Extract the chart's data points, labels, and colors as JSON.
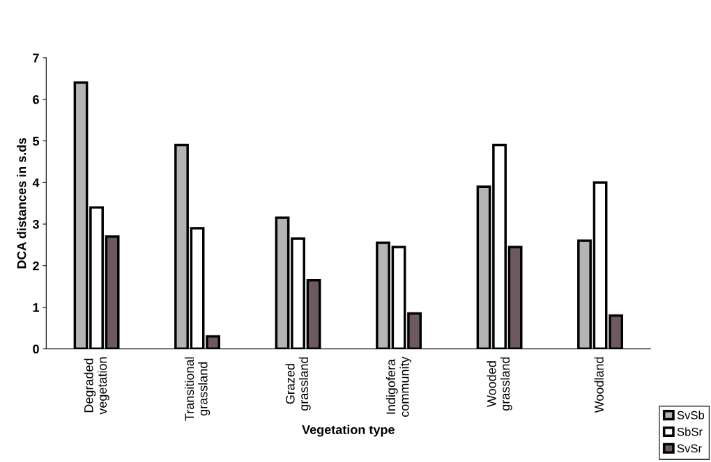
{
  "chart_data": {
    "type": "bar",
    "xlabel": "Vegetation type",
    "ylabel": "DCA distances in s.ds",
    "categories": [
      "Degraded\nvegetation",
      "Transitional\ngrassland",
      "Grazed\ngrassland",
      "Indigofera\ncommunity",
      "Wooded\ngrassland",
      "Woodland"
    ],
    "series": [
      {
        "name": "SvSb",
        "color": "#b4b4b4",
        "values": [
          6.4,
          4.9,
          3.15,
          2.55,
          3.9,
          2.6
        ]
      },
      {
        "name": "SbSr",
        "color": "#ffffff",
        "values": [
          3.4,
          2.9,
          2.65,
          2.45,
          4.9,
          4.0
        ]
      },
      {
        "name": "SvSr",
        "color": "#6e5a5e",
        "values": [
          2.7,
          0.3,
          1.65,
          0.85,
          2.45,
          0.8
        ]
      }
    ],
    "ylim": [
      0,
      7
    ],
    "yticks": [
      0,
      1,
      2,
      3,
      4,
      5,
      6,
      7
    ],
    "legend": "bottom right",
    "grid": false
  }
}
